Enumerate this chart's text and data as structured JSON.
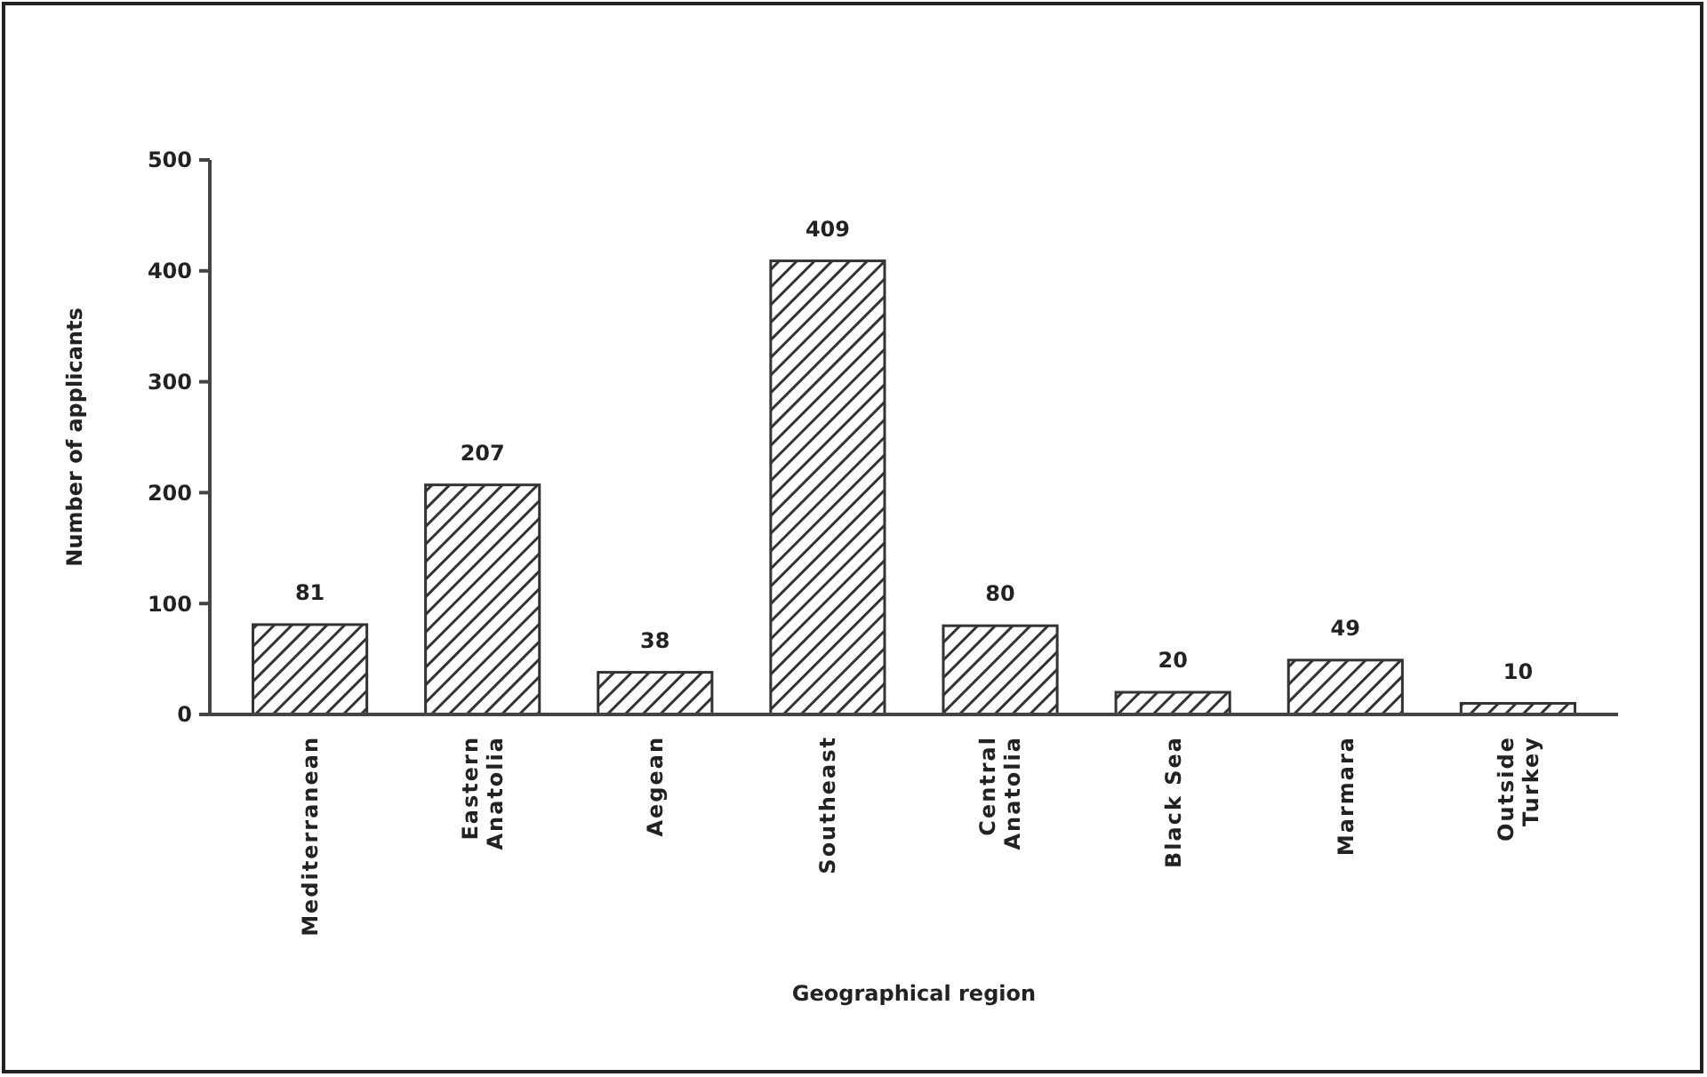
{
  "chart_data": {
    "type": "bar",
    "xlabel": "Geographical region",
    "ylabel": "Number of applicants",
    "categories": [
      "Mediterranean",
      "Eastern Anatolia",
      "Aegean",
      "Southeast",
      "Central Anatolia",
      "Black Sea",
      "Marmara",
      "Outside Turkey"
    ],
    "values": [
      81,
      207,
      38,
      409,
      80,
      20,
      49,
      10
    ],
    "color": "#333333",
    "ylim": [
      0,
      500
    ],
    "yticks": [
      0,
      100,
      200,
      300,
      400,
      500
    ],
    "data_labels": true,
    "grid": false
  }
}
